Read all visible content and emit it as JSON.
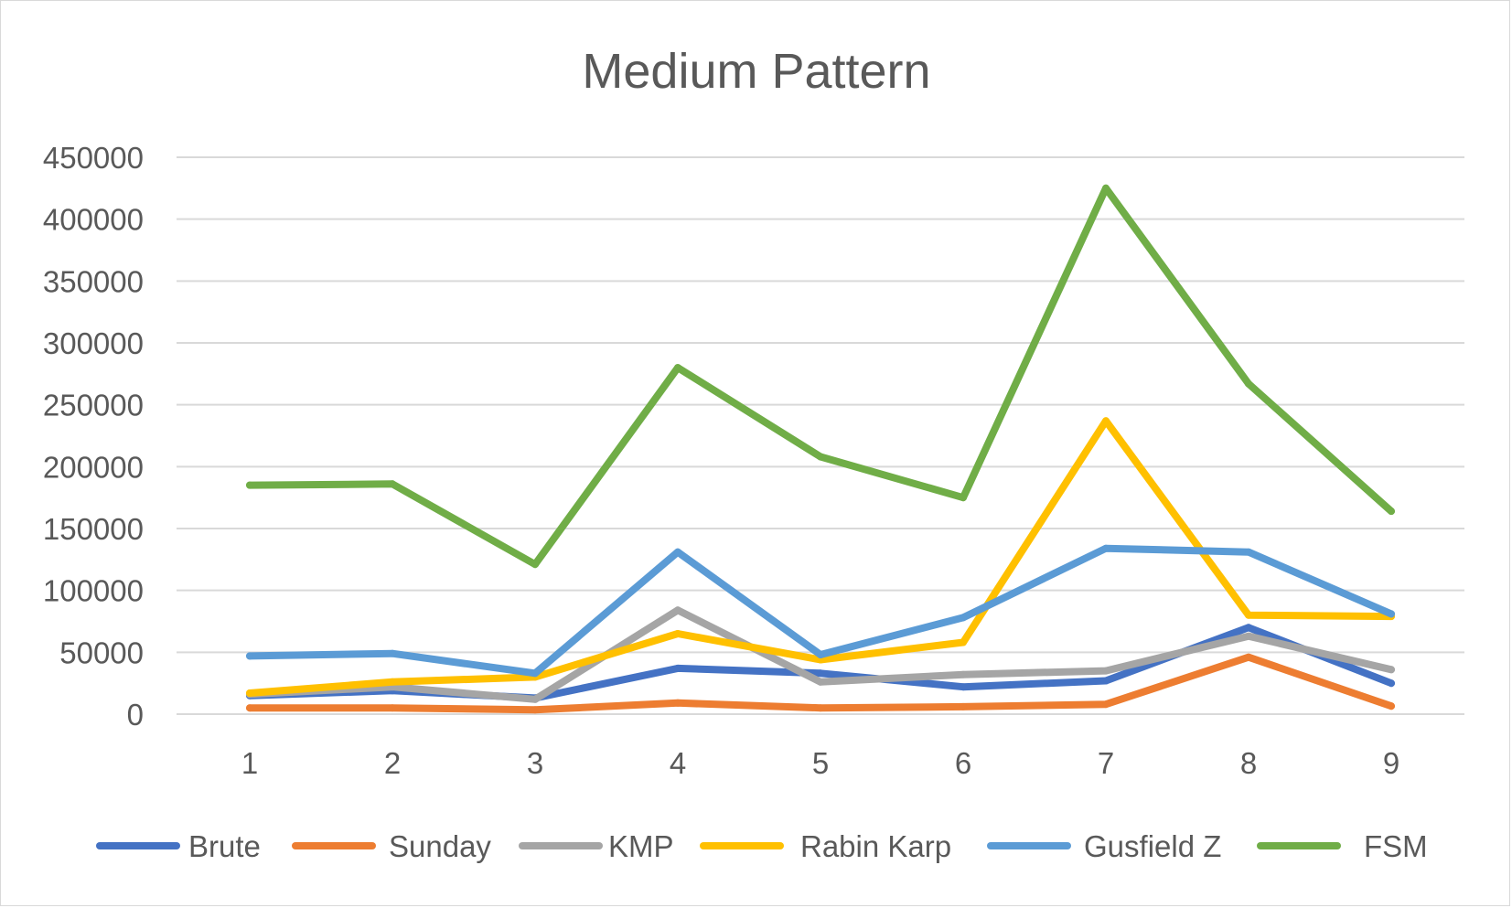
{
  "chart_data": {
    "type": "line",
    "title": "Medium Pattern",
    "xlabel": "",
    "ylabel": "",
    "categories": [
      "1",
      "2",
      "3",
      "4",
      "5",
      "6",
      "7",
      "8",
      "9"
    ],
    "ylim": [
      0,
      450000
    ],
    "yticks": [
      "450000",
      "400000",
      "350000",
      "300000",
      "250000",
      "200000",
      "150000",
      "100000",
      "50000",
      "0"
    ],
    "grid": true,
    "legend_position": "bottom",
    "series": [
      {
        "name": "Brute",
        "color": "#4472c4",
        "values": [
          15000,
          19000,
          13000,
          37000,
          33000,
          22000,
          27000,
          70000,
          25000
        ]
      },
      {
        "name": "Sunday",
        "color": "#ed7d31",
        "values": [
          5000,
          5000,
          3500,
          9000,
          5000,
          6000,
          8000,
          46000,
          6500
        ]
      },
      {
        "name": "KMP",
        "color": "#a5a5a5",
        "values": [
          16000,
          22000,
          12000,
          84000,
          26000,
          32000,
          35000,
          63000,
          36000
        ]
      },
      {
        "name": "Rabin Karp",
        "color": "#ffc000",
        "values": [
          17000,
          26000,
          30000,
          65000,
          44000,
          58000,
          237000,
          80000,
          79000
        ]
      },
      {
        "name": "Gusfield Z",
        "color": "#5b9bd5",
        "values": [
          47000,
          49000,
          33000,
          131000,
          48000,
          78000,
          134000,
          131000,
          81000
        ]
      },
      {
        "name": "FSM",
        "color": "#70ad47",
        "values": [
          185000,
          186000,
          121000,
          280000,
          208000,
          175000,
          425000,
          267000,
          164000
        ]
      }
    ]
  }
}
